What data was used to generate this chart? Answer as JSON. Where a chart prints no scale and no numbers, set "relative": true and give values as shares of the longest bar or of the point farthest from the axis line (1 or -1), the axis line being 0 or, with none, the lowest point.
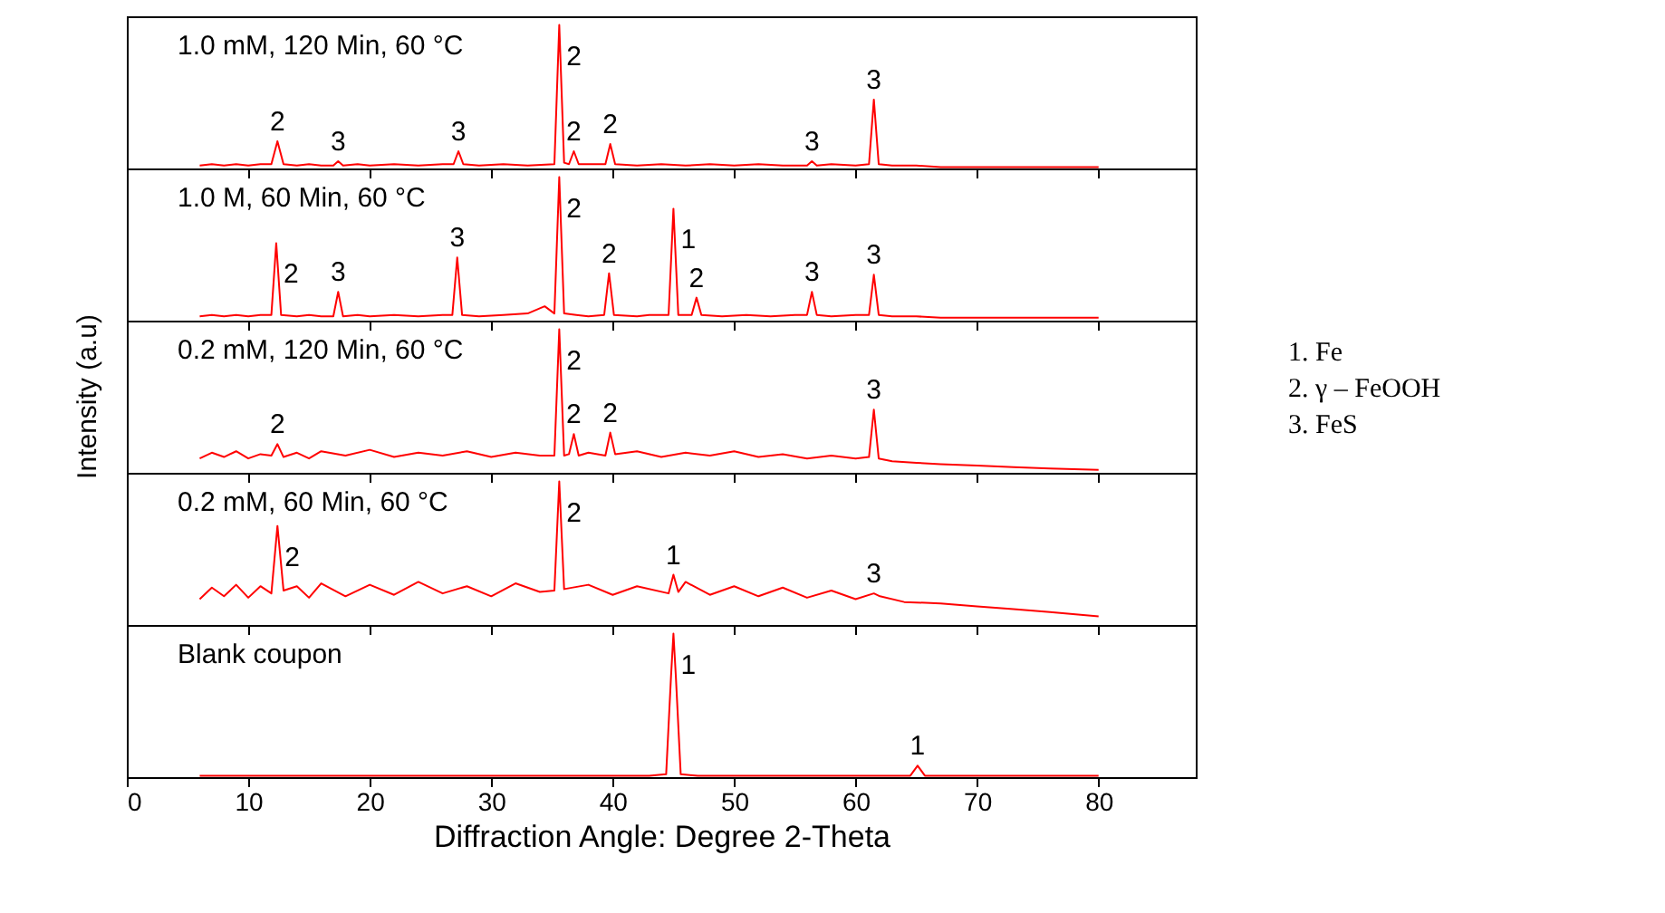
{
  "chart_data": [
    {
      "type": "line",
      "relative": true,
      "tick_labels": false,
      "xlim": [
        0,
        88
      ],
      "xticks": [
        0,
        10,
        20,
        30,
        40,
        50,
        60,
        70,
        80
      ],
      "series": [
        {
          "color": "#ff0000",
          "x": [
            6,
            7,
            8,
            9,
            10,
            11,
            11.9,
            12.4,
            12.9,
            14,
            15,
            16,
            17.0,
            17.4,
            17.8,
            19,
            20,
            22,
            24,
            26,
            26.9,
            27.3,
            27.7,
            29,
            31,
            33,
            35.2,
            35.6,
            36.0,
            36.4,
            36.8,
            37.2,
            39.4,
            39.8,
            40.2,
            42,
            44,
            46,
            48,
            50,
            52,
            54,
            56.0,
            56.4,
            56.8,
            58,
            60,
            61.1,
            61.5,
            61.9,
            63,
            65,
            67,
            70,
            73,
            76,
            80
          ],
          "values": [
            0.02,
            0.03,
            0.02,
            0.03,
            0.02,
            0.03,
            0.03,
            0.19,
            0.03,
            0.02,
            0.03,
            0.02,
            0.02,
            0.05,
            0.02,
            0.03,
            0.02,
            0.03,
            0.02,
            0.03,
            0.03,
            0.12,
            0.03,
            0.02,
            0.03,
            0.02,
            0.03,
            1,
            0.04,
            0.03,
            0.12,
            0.03,
            0.03,
            0.17,
            0.03,
            0.02,
            0.03,
            0.02,
            0.03,
            0.02,
            0.03,
            0.02,
            0.02,
            0.05,
            0.02,
            0.03,
            0.02,
            0.03,
            0.48,
            0.03,
            0.02,
            0.02,
            0.01,
            0.01,
            0.01,
            0.01,
            0.01
          ]
        }
      ],
      "annotations": [
        "1.0 mM, 120 Min, 60 °C",
        {
          "text": "2",
          "x": 12.4,
          "y": 0.19
        },
        {
          "text": "3",
          "x": 17.4,
          "y": 0.05
        },
        {
          "text": "3",
          "x": 27.3,
          "y": 0.12
        },
        {
          "text": "2",
          "x": 35.6,
          "y": 1
        },
        {
          "text": "2",
          "x": 36.8,
          "y": 0.12
        },
        {
          "text": "2",
          "x": 39.8,
          "y": 0.17
        },
        {
          "text": "3",
          "x": 56.4,
          "y": 0.05
        },
        {
          "text": "3",
          "x": 61.5,
          "y": 0.48
        }
      ]
    },
    {
      "type": "line",
      "relative": true,
      "tick_labels": false,
      "xlim": [
        0,
        88
      ],
      "xticks": [
        0,
        10,
        20,
        30,
        40,
        50,
        60,
        70,
        80
      ],
      "series": [
        {
          "color": "#ff0000",
          "x": [
            6,
            7,
            8,
            9,
            10,
            11,
            11.9,
            12.3,
            12.7,
            14,
            15,
            16,
            17.0,
            17.4,
            17.8,
            19,
            20,
            22,
            24,
            26,
            26.8,
            27.2,
            27.6,
            29,
            31,
            33,
            34.4,
            35.2,
            35.6,
            36.0,
            37,
            38,
            39.3,
            39.7,
            40.1,
            42,
            43,
            44.6,
            45.0,
            45.4,
            46.5,
            46.9,
            47.3,
            49,
            51,
            53,
            55,
            56.0,
            56.4,
            56.8,
            58,
            60,
            61.1,
            61.5,
            61.9,
            63,
            65,
            67,
            70,
            73,
            76,
            80
          ],
          "values": [
            0.03,
            0.04,
            0.03,
            0.04,
            0.03,
            0.04,
            0.04,
            0.54,
            0.04,
            0.03,
            0.04,
            0.03,
            0.03,
            0.2,
            0.03,
            0.04,
            0.03,
            0.04,
            0.03,
            0.04,
            0.04,
            0.44,
            0.04,
            0.03,
            0.04,
            0.05,
            0.1,
            0.05,
            1,
            0.05,
            0.04,
            0.03,
            0.04,
            0.33,
            0.04,
            0.03,
            0.04,
            0.04,
            0.78,
            0.04,
            0.04,
            0.16,
            0.04,
            0.03,
            0.04,
            0.03,
            0.04,
            0.04,
            0.2,
            0.04,
            0.03,
            0.04,
            0.04,
            0.32,
            0.04,
            0.03,
            0.03,
            0.02,
            0.02,
            0.02,
            0.02,
            0.02
          ]
        }
      ],
      "annotations": [
        "1.0 M, 60 Min, 60 °C",
        {
          "text": "2",
          "x": 12.3,
          "y": 0.54
        },
        {
          "text": "3",
          "x": 17.4,
          "y": 0.2
        },
        {
          "text": "3",
          "x": 27.2,
          "y": 0.44
        },
        {
          "text": "2",
          "x": 35.6,
          "y": 1
        },
        {
          "text": "2",
          "x": 39.7,
          "y": 0.33
        },
        {
          "text": "1",
          "x": 45.0,
          "y": 0.78
        },
        {
          "text": "2",
          "x": 46.9,
          "y": 0.16
        },
        {
          "text": "3",
          "x": 56.4,
          "y": 0.2
        },
        {
          "text": "3",
          "x": 61.5,
          "y": 0.32
        }
      ]
    },
    {
      "type": "line",
      "relative": true,
      "tick_labels": false,
      "xlim": [
        0,
        88
      ],
      "xticks": [
        0,
        10,
        20,
        30,
        40,
        50,
        60,
        70,
        80
      ],
      "ylabel": "Intensity (a.u)",
      "series": [
        {
          "color": "#ff0000",
          "x": [
            6,
            7,
            8,
            9,
            10,
            11,
            11.9,
            12.4,
            12.9,
            14,
            15,
            16,
            18,
            20,
            22,
            24,
            26,
            28,
            30,
            32,
            34,
            35.2,
            35.6,
            36.0,
            36.4,
            36.8,
            37.2,
            38,
            39.4,
            39.8,
            40.2,
            42,
            44,
            46,
            48,
            50,
            52,
            54,
            56,
            58,
            60,
            61.1,
            61.5,
            61.9,
            63,
            65,
            67,
            70,
            73,
            76,
            80
          ],
          "values": [
            0.1,
            0.14,
            0.11,
            0.15,
            0.1,
            0.13,
            0.12,
            0.2,
            0.11,
            0.14,
            0.1,
            0.15,
            0.12,
            0.16,
            0.11,
            0.14,
            0.12,
            0.15,
            0.11,
            0.14,
            0.12,
            0.12,
            1,
            0.12,
            0.13,
            0.27,
            0.12,
            0.14,
            0.12,
            0.28,
            0.13,
            0.15,
            0.11,
            0.14,
            0.12,
            0.15,
            0.11,
            0.13,
            0.1,
            0.12,
            0.1,
            0.11,
            0.44,
            0.1,
            0.08,
            0.07,
            0.06,
            0.05,
            0.04,
            0.03,
            0.02
          ]
        }
      ],
      "annotations": [
        "0.2 mM, 120 Min, 60 °C",
        {
          "text": "2",
          "x": 12.4,
          "y": 0.2
        },
        {
          "text": "2",
          "x": 35.6,
          "y": 1
        },
        {
          "text": "2",
          "x": 36.8,
          "y": 0.27
        },
        {
          "text": "2",
          "x": 39.8,
          "y": 0.28
        },
        {
          "text": "3",
          "x": 61.5,
          "y": 0.44
        }
      ]
    },
    {
      "type": "line",
      "relative": true,
      "tick_labels": false,
      "xlim": [
        0,
        88
      ],
      "xticks": [
        0,
        10,
        20,
        30,
        40,
        50,
        60,
        70,
        80
      ],
      "series": [
        {
          "color": "#ff0000",
          "x": [
            6,
            7,
            8,
            9,
            10,
            11,
            11.9,
            12.4,
            12.9,
            14,
            15,
            16,
            18,
            20,
            22,
            24,
            26,
            28,
            30,
            32,
            34,
            35.2,
            35.6,
            36.0,
            38,
            40,
            42,
            44.6,
            45.0,
            45.4,
            46,
            48,
            50,
            52,
            54,
            56,
            58,
            60,
            61.5,
            62,
            64,
            67,
            70,
            73,
            76,
            80
          ],
          "values": [
            0.18,
            0.26,
            0.2,
            0.28,
            0.19,
            0.27,
            0.22,
            0.69,
            0.24,
            0.27,
            0.19,
            0.29,
            0.2,
            0.28,
            0.21,
            0.3,
            0.22,
            0.27,
            0.2,
            0.29,
            0.23,
            0.24,
            1,
            0.25,
            0.28,
            0.21,
            0.27,
            0.22,
            0.35,
            0.23,
            0.3,
            0.21,
            0.27,
            0.2,
            0.26,
            0.19,
            0.24,
            0.18,
            0.22,
            0.2,
            0.16,
            0.15,
            0.13,
            0.11,
            0.09,
            0.06
          ]
        }
      ],
      "annotations": [
        "0.2 mM, 60 Min, 60 °C",
        {
          "text": "2",
          "x": 12.4,
          "y": 0.69
        },
        {
          "text": "2",
          "x": 35.6,
          "y": 1
        },
        {
          "text": "1",
          "x": 45.0,
          "y": 0.35
        },
        {
          "text": "3",
          "x": 61.5,
          "y": 0.22
        }
      ]
    },
    {
      "type": "line",
      "relative": true,
      "tick_labels": "x",
      "xlim": [
        0,
        88
      ],
      "xticks": [
        0,
        10,
        20,
        30,
        40,
        50,
        60,
        70,
        80
      ],
      "xlabel": "Diffraction Angle: Degree 2-Theta",
      "series": [
        {
          "color": "#ff0000",
          "x": [
            6,
            10,
            15,
            20,
            25,
            30,
            35,
            40,
            43,
            44.4,
            44.8,
            45.0,
            45.2,
            45.6,
            47,
            50,
            55,
            60,
            64.5,
            65.1,
            65.7,
            70,
            75,
            80
          ],
          "values": [
            0.01,
            0.01,
            0.01,
            0.01,
            0.01,
            0.01,
            0.01,
            0.01,
            0.01,
            0.02,
            0.7,
            1,
            0.7,
            0.02,
            0.01,
            0.01,
            0.01,
            0.01,
            0.01,
            0.08,
            0.01,
            0.01,
            0.01,
            0.01
          ]
        }
      ],
      "annotations": [
        "Blank coupon",
        {
          "text": "1",
          "x": 45.0,
          "y": 1
        },
        {
          "text": "1",
          "x": 65.1,
          "y": 0.08
        }
      ]
    },
    {
      "type": "other",
      "annotations": [
        "1.   Fe",
        "2.   γ – FeOOH",
        "3.   FeS"
      ]
    }
  ]
}
